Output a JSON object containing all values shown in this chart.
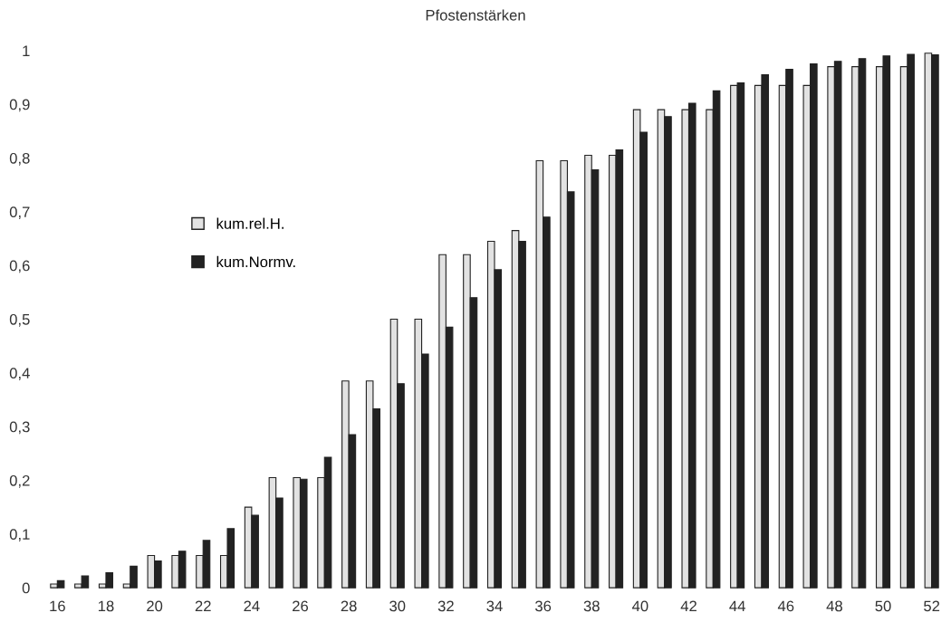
{
  "chart_data": {
    "type": "bar",
    "title": "Pfostenstärken",
    "categories": [
      "16",
      null,
      "18",
      null,
      "20",
      null,
      "22",
      null,
      "24",
      null,
      "26",
      null,
      "28",
      null,
      "30",
      null,
      "32",
      null,
      "34",
      null,
      "36",
      null,
      "38",
      null,
      "40",
      null,
      "42",
      null,
      "44",
      null,
      "46",
      null,
      "48",
      null,
      "50",
      null,
      "52"
    ],
    "series": [
      {
        "name": "kum.rel.H.",
        "color": "#e2e2e2",
        "values": [
          0.007,
          0.007,
          0.007,
          0.007,
          0.06,
          0.06,
          0.06,
          0.06,
          0.15,
          0.205,
          0.205,
          0.205,
          0.385,
          0.385,
          0.5,
          0.5,
          0.62,
          0.62,
          0.645,
          0.665,
          0.795,
          0.795,
          0.805,
          0.805,
          0.89,
          0.89,
          0.89,
          0.89,
          0.935,
          0.935,
          0.935,
          0.935,
          0.97,
          0.97,
          0.97,
          0.97,
          0.995
        ]
      },
      {
        "name": "kum.Normv.",
        "color": "#222222",
        "values": [
          0.013,
          0.022,
          0.028,
          0.04,
          0.05,
          0.068,
          0.088,
          0.11,
          0.135,
          0.167,
          0.202,
          0.243,
          0.285,
          0.333,
          0.38,
          0.435,
          0.485,
          0.54,
          0.592,
          0.645,
          0.69,
          0.737,
          0.778,
          0.815,
          0.848,
          0.877,
          0.902,
          0.925,
          0.94,
          0.955,
          0.965,
          0.975,
          0.98,
          0.985,
          0.99,
          0.993,
          0.992
        ]
      }
    ],
    "ylim": [
      0,
      1
    ],
    "yticks": [
      0,
      {
        "value": 0.1,
        "label": "0,1"
      },
      {
        "value": 0.2,
        "label": "0,2"
      },
      {
        "value": 0.3,
        "label": "0,3"
      },
      {
        "value": 0.4,
        "label": "0,4"
      },
      {
        "value": 0.5,
        "label": "0,5"
      },
      {
        "value": 0.6,
        "label": "0,6"
      },
      {
        "value": 0.7,
        "label": "0,7"
      },
      {
        "value": 0.8,
        "label": "0,8"
      },
      {
        "value": 0.9,
        "label": "0,9"
      },
      1
    ],
    "grid": false,
    "legend": "left"
  }
}
